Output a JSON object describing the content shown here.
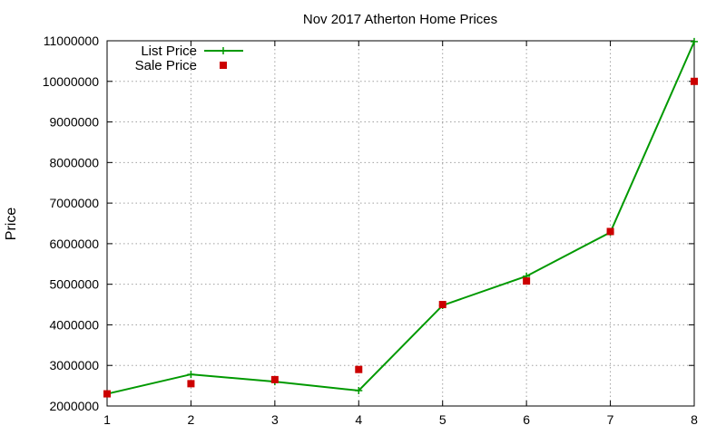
{
  "chart_data": {
    "type": "line",
    "title": "Nov 2017 Atherton Home Prices",
    "xlabel": "",
    "ylabel": "Price",
    "x": [
      1,
      2,
      3,
      4,
      5,
      6,
      7,
      8
    ],
    "xlim": [
      1,
      8
    ],
    "ylim": [
      2000000,
      11000000
    ],
    "xticks": [
      "1",
      "2",
      "3",
      "4",
      "5",
      "6",
      "7",
      "8"
    ],
    "yticks": [
      "2000000",
      "3000000",
      "4000000",
      "5000000",
      "6000000",
      "7000000",
      "8000000",
      "9000000",
      "10000000",
      "11000000"
    ],
    "grid": true,
    "legend_position": "top-left",
    "series": [
      {
        "name": "List Price",
        "style": "line-plus",
        "color": "#009900",
        "values": [
          2300000,
          2780000,
          2600000,
          2380000,
          4480000,
          5200000,
          6280000,
          10980000
        ]
      },
      {
        "name": "Sale Price",
        "style": "square-points",
        "color": "#cc0000",
        "values": [
          2300000,
          2550000,
          2650000,
          2900000,
          4500000,
          5080000,
          6300000,
          10000000
        ]
      }
    ]
  }
}
